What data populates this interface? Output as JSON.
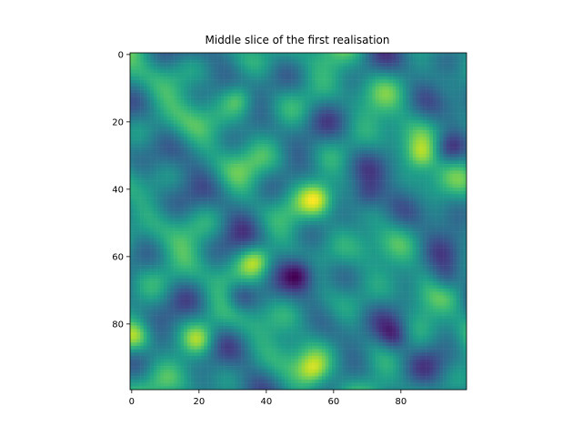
{
  "chart_data": {
    "type": "heatmap",
    "title": "Middle slice of the first realisation",
    "xlabel": "",
    "ylabel": "",
    "colormap": "viridis",
    "grid": false,
    "x_range": [
      -0.5,
      99.5
    ],
    "y_range": [
      99.5,
      -0.5
    ],
    "x_ticks": [
      0,
      20,
      40,
      60,
      80
    ],
    "y_ticks": [
      0,
      20,
      40,
      60,
      80
    ],
    "x_tick_labels": [
      "0",
      "20",
      "40",
      "60",
      "80"
    ],
    "y_tick_labels": [
      "0",
      "20",
      "40",
      "60",
      "80"
    ],
    "grid_size": [
      100,
      100
    ],
    "approx_features": [
      {
        "x": 55,
        "y": 43,
        "level": "high"
      },
      {
        "x": 32,
        "y": 13,
        "level": "high"
      },
      {
        "x": 37,
        "y": 61,
        "level": "high"
      },
      {
        "x": 1,
        "y": 84,
        "level": "high"
      },
      {
        "x": 86,
        "y": 30,
        "level": "high"
      },
      {
        "x": 20,
        "y": 85,
        "level": "high"
      },
      {
        "x": 54,
        "y": 94,
        "level": "high"
      },
      {
        "x": 70,
        "y": 42,
        "level": "low"
      },
      {
        "x": 32,
        "y": 72,
        "level": "low"
      },
      {
        "x": 50,
        "y": 65,
        "level": "low"
      },
      {
        "x": 78,
        "y": 84,
        "level": "low"
      },
      {
        "x": 94,
        "y": 28,
        "level": "low"
      },
      {
        "x": 93,
        "y": 67,
        "level": "low"
      }
    ]
  }
}
